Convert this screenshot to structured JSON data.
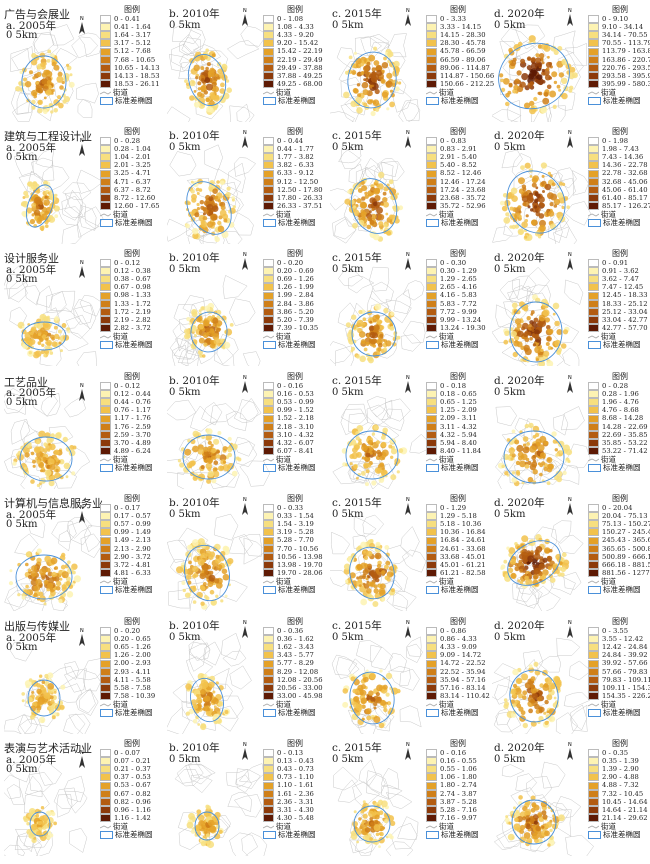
{
  "legend_labels": {
    "title": "图例",
    "street": "街道",
    "ellipse": "标准差椭圆"
  },
  "scale_text": "0   5km",
  "colors": [
    "#ffffff",
    "#fdf3b3",
    "#f7df7f",
    "#f2c24c",
    "#e4a128",
    "#cf7f19",
    "#b35c11",
    "#8c3a0a",
    "#5e1a04"
  ],
  "rows": [
    {
      "label": "广告与会展业",
      "panels": [
        {
          "label": "a. 2005年",
          "bins": [
            "0 - 0.41",
            "0.41 - 1.64",
            "1.64 - 3.17",
            "3.17 - 5.12",
            "5.12 - 7.68",
            "7.68 - 10.65",
            "10.65 - 14.13",
            "14.13 - 18.53",
            "18.53 - 26.11"
          ]
        },
        {
          "label": "b. 2010年",
          "bins": [
            "0 - 1.08",
            "1.08 - 4.33",
            "4.33 - 9.20",
            "9.20 - 15.42",
            "15.42 - 22.19",
            "22.19 - 29.49",
            "29.49 - 37.88",
            "37.88 - 49.25",
            "49.25 - 68.00"
          ]
        },
        {
          "label": "c. 2015年",
          "bins": [
            "0 - 3.33",
            "3.33 - 14.15",
            "14.15 - 28.30",
            "28.30 - 45.78",
            "45.78 - 66.59",
            "66.59 - 89.06",
            "89.06 - 114.87",
            "114.87 - 150.66",
            "150.66 - 212.25"
          ]
        },
        {
          "label": "d. 2020年",
          "bins": [
            "0 - 9.10",
            "9.10 - 34.14",
            "34.14 - 70.55",
            "70.55 - 113.79",
            "113.79 - 163.86",
            "163.86 - 220.76",
            "220.76 - 293.58",
            "293.58 - 395.99",
            "395.99 - 580.34"
          ]
        }
      ]
    },
    {
      "label": "建筑与工程设计业",
      "panels": [
        {
          "label": "a. 2005年",
          "bins": [
            "0 - 0.28",
            "0.28 - 1.04",
            "1.04 - 2.01",
            "2.01 - 3.25",
            "3.25 - 4.71",
            "4.71 - 6.37",
            "6.37 - 8.72",
            "8.72 - 12.60",
            "12.60 - 17.65"
          ]
        },
        {
          "label": "b. 2010年",
          "bins": [
            "0 - 0.44",
            "0.44 - 1.77",
            "1.77 - 3.82",
            "3.82 - 6.33",
            "6.33 - 9.12",
            "9.12 - 12.50",
            "12.50 - 17.80",
            "17.80 - 26.33",
            "26.33 - 37.51"
          ]
        },
        {
          "label": "c. 2015年",
          "bins": [
            "0 - 0.83",
            "0.83 - 2.91",
            "2.91 - 5.40",
            "5.40 - 8.52",
            "8.52 - 12.46",
            "12.46 - 17.24",
            "17.24 - 23.68",
            "23.68 - 35.72",
            "35.72 - 52.96"
          ]
        },
        {
          "label": "d. 2020年",
          "bins": [
            "0 - 1.98",
            "1.98 - 7.43",
            "7.43 - 14.36",
            "14.36 - 22.78",
            "22.78 - 32.68",
            "32.68 - 45.06",
            "45.06 - 61.40",
            "61.40 - 85.17",
            "85.17 - 126.27"
          ]
        }
      ]
    },
    {
      "label": "设计服务业",
      "panels": [
        {
          "label": "a. 2005年",
          "bins": [
            "0 - 0.12",
            "0.12 - 0.38",
            "0.38 - 0.67",
            "0.67 - 0.98",
            "0.98 - 1.33",
            "1.33 - 1.72",
            "1.72 - 2.19",
            "2.19 - 2.82",
            "2.82 - 3.72"
          ]
        },
        {
          "label": "b. 2010年",
          "bins": [
            "0 - 0.20",
            "0.20 - 0.69",
            "0.69 - 1.26",
            "1.26 - 1.99",
            "1.99 - 2.84",
            "2.84 - 3.86",
            "3.86 - 5.20",
            "5.20 - 7.39",
            "7.39 - 10.35"
          ]
        },
        {
          "label": "c. 2015年",
          "bins": [
            "0 - 0.30",
            "0.30 - 1.29",
            "1.29 - 2.65",
            "2.65 - 4.16",
            "4.16 - 5.83",
            "5.83 - 7.72",
            "7.72 - 9.99",
            "9.99 - 13.24",
            "13.24 - 19.30"
          ]
        },
        {
          "label": "d. 2020年",
          "bins": [
            "0 - 0.91",
            "0.91 - 3.62",
            "3.62 - 7.47",
            "7.47 - 12.45",
            "12.45 - 18.33",
            "18.33 - 25.12",
            "25.12 - 33.04",
            "33.04 - 42.77",
            "42.77 - 57.70"
          ]
        }
      ]
    },
    {
      "label": "工艺品业",
      "panels": [
        {
          "label": "a. 2005年",
          "bins": [
            "0 - 0.12",
            "0.12 - 0.44",
            "0.44 - 0.76",
            "0.76 - 1.17",
            "1.17 - 1.76",
            "1.76 - 2.59",
            "2.59 - 3.70",
            "3.70 - 4.89",
            "4.89 - 6.24"
          ]
        },
        {
          "label": "b. 2010年",
          "bins": [
            "0 - 0.16",
            "0.16 - 0.53",
            "0.53 - 0.99",
            "0.99 - 1.52",
            "1.52 - 2.18",
            "2.18 - 3.10",
            "3.10 - 4.32",
            "4.32 - 6.07",
            "6.07 - 8.41"
          ]
        },
        {
          "label": "c. 2015年",
          "bins": [
            "0 - 0.18",
            "0.18 - 0.65",
            "0.65 - 1.25",
            "1.25 - 2.09",
            "2.09 - 3.11",
            "3.11 - 4.32",
            "4.32 - 5.94",
            "5.94 - 8.40",
            "8.40 - 11.84"
          ]
        },
        {
          "label": "d. 2020年",
          "bins": [
            "0 - 0.28",
            "0.28 - 1.96",
            "1.96 - 4.76",
            "4.76 - 8.68",
            "8.68 - 14.28",
            "14.28 - 22.69",
            "22.69 - 35.85",
            "35.85 - 53.22",
            "53.22 - 71.42"
          ]
        }
      ]
    },
    {
      "label": "计算机与信息服务业",
      "panels": [
        {
          "label": "a. 2005年",
          "bins": [
            "0 - 0.17",
            "0.17 - 0.57",
            "0.57 - 0.99",
            "0.99 - 1.49",
            "1.49 - 2.13",
            "2.13 - 2.90",
            "2.90 - 3.72",
            "3.72 - 4.81",
            "4.81 - 6.33"
          ]
        },
        {
          "label": "b. 2010年",
          "bins": [
            "0 - 0.33",
            "0.33 - 1.54",
            "1.54 - 3.19",
            "3.19 - 5.28",
            "5.28 - 7.70",
            "7.70 - 10.56",
            "10.56 - 13.98",
            "13.98 - 19.70",
            "19.70 - 28.06"
          ]
        },
        {
          "label": "c. 2015年",
          "bins": [
            "0 - 1.29",
            "1.29 - 5.18",
            "5.18 - 10.36",
            "10.36 - 16.84",
            "16.84 - 24.61",
            "24.61 - 33.68",
            "33.68 - 45.01",
            "45.01 - 61.21",
            "61.21 - 82.58"
          ]
        },
        {
          "label": "d. 2020年",
          "bins": [
            "0 - 20.04",
            "20.04 - 75.13",
            "75.13 - 150.27",
            "150.27 - 245.43",
            "245.43 - 365.65",
            "365.65 - 500.89",
            "500.89 - 666.18",
            "666.18 - 881.56",
            "881.56 - 1277.26"
          ]
        }
      ]
    },
    {
      "label": "出版与传媒业",
      "panels": [
        {
          "label": "a. 2005年",
          "bins": [
            "0 - 0.20",
            "0.20 - 0.65",
            "0.65 - 1.26",
            "1.26 - 2.00",
            "2.00 - 2.93",
            "2.93 - 4.11",
            "4.11 - 5.58",
            "5.58 - 7.58",
            "7.58 - 10.39"
          ]
        },
        {
          "label": "b. 2010年",
          "bins": [
            "0 - 0.36",
            "0.36 - 1.62",
            "1.62 - 3.43",
            "3.43 - 5.77",
            "5.77 - 8.29",
            "8.29 - 12.08",
            "12.08 - 20.56",
            "20.56 - 33.00",
            "33.00 - 45.98"
          ]
        },
        {
          "label": "c. 2015年",
          "bins": [
            "0 - 0.86",
            "0.86 - 4.33",
            "4.33 - 9.09",
            "9.09 - 14.72",
            "14.72 - 22.52",
            "22.52 - 35.94",
            "35.94 - 57.16",
            "57.16 - 83.14",
            "83.14 - 110.42"
          ]
        },
        {
          "label": "d. 2020年",
          "bins": [
            "0 - 3.55",
            "3.55 - 12.42",
            "12.42 - 24.84",
            "24.84 - 39.92",
            "39.92 - 57.66",
            "57.66 - 79.83",
            "79.83 - 109.11",
            "109.11 - 154.35",
            "154.35 - 226.20"
          ]
        }
      ]
    },
    {
      "label": "表演与艺术活动业",
      "panels": [
        {
          "label": "a. 2005年",
          "bins": [
            "0 - 0.07",
            "0.07 - 0.21",
            "0.21 - 0.37",
            "0.37 - 0.53",
            "0.53 - 0.67",
            "0.67 - 0.82",
            "0.82 - 0.96",
            "0.96 - 1.16",
            "1.16 - 1.42"
          ]
        },
        {
          "label": "b. 2010年",
          "bins": [
            "0 - 0.13",
            "0.13 - 0.43",
            "0.43 - 0.73",
            "0.73 - 1.10",
            "1.10 - 1.61",
            "1.61 - 2.36",
            "2.36 - 3.31",
            "3.31 - 4.30",
            "4.30 - 5.48"
          ]
        },
        {
          "label": "c. 2015年",
          "bins": [
            "0 - 0.16",
            "0.16 - 0.55",
            "0.55 - 1.06",
            "1.06 - 1.80",
            "1.80 - 2.74",
            "2.74 - 3.87",
            "3.87 - 5.28",
            "5.28 - 7.16",
            "7.16 - 9.97"
          ]
        },
        {
          "label": "d. 2020年",
          "bins": [
            "0 - 0.35",
            "0.35 - 1.39",
            "1.39 - 2.90",
            "2.90 - 4.88",
            "4.88 - 7.32",
            "7.32 - 10.45",
            "10.45 - 14.64",
            "14.64 - 21.14",
            "21.14 - 29.62"
          ]
        }
      ]
    }
  ]
}
